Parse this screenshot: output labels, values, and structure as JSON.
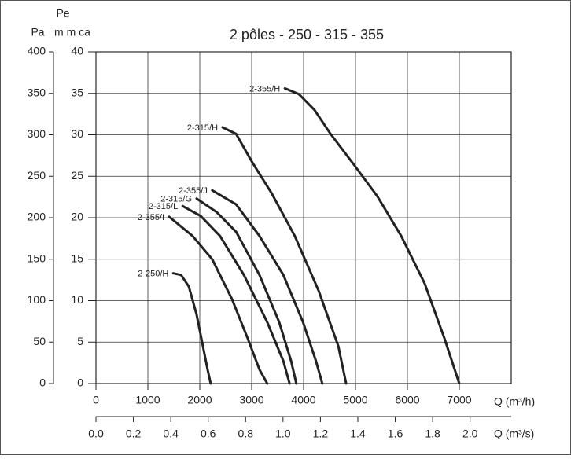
{
  "chart_data": {
    "type": "line",
    "title": "2 pôles - 250 - 315 - 355",
    "y_label": "Pa",
    "y2_label_top": "Pe",
    "y2_label": "m m ca",
    "x_label": "Q (m³/h)",
    "x2_label": "Q (m³/s)",
    "xlim": [
      0,
      8000
    ],
    "xticks": [
      0,
      1000,
      2000,
      3000,
      4000,
      5000,
      6000,
      7000
    ],
    "x2lim": [
      0,
      2.22
    ],
    "x2ticks": [
      {
        "value": 0,
        "label": "0.0"
      },
      {
        "value": 0.2,
        "label": "0.2"
      },
      {
        "value": 0.4,
        "label": "0.4"
      },
      {
        "value": 0.6,
        "label": "0.6"
      },
      {
        "value": 0.8,
        "label": "0.8"
      },
      {
        "value": 1,
        "label": "1.0"
      },
      {
        "value": 1.2,
        "label": "1.2"
      },
      {
        "value": 1.4,
        "label": "1.4"
      },
      {
        "value": 1.6,
        "label": "1.6"
      },
      {
        "value": 1.8,
        "label": "1.8"
      },
      {
        "value": 2,
        "label": "2.0"
      }
    ],
    "ylim": [
      0,
      400
    ],
    "yticks": [
      0,
      50,
      100,
      150,
      200,
      250,
      300,
      350,
      400
    ],
    "y2lim": [
      0,
      40
    ],
    "y2ticks": [
      0,
      5,
      10,
      15,
      20,
      25,
      30,
      35,
      40
    ],
    "grid": true,
    "series": [
      {
        "name": "2-250/H",
        "color": "#222222",
        "x": [
          1490,
          1640,
          1790,
          1940,
          2060,
          2150,
          2210
        ],
        "values": [
          133,
          131,
          117,
          83,
          45,
          17,
          0
        ]
      },
      {
        "name": "2-355/I",
        "color": "#222222",
        "x": [
          1410,
          1860,
          2240,
          2620,
          2920,
          3150,
          3300
        ],
        "values": [
          201,
          178,
          150,
          102,
          55,
          17,
          0
        ]
      },
      {
        "name": "2-315/L",
        "color": "#222222",
        "x": [
          1670,
          2020,
          2390,
          2850,
          3300,
          3610,
          3730
        ],
        "values": [
          214,
          202,
          178,
          131,
          74,
          27,
          0
        ]
      },
      {
        "name": "2-315/G",
        "color": "#222222",
        "x": [
          1940,
          2320,
          2700,
          3150,
          3530,
          3760,
          3860
        ],
        "values": [
          223,
          207,
          183,
          131,
          74,
          27,
          0
        ]
      },
      {
        "name": "2-355/J",
        "color": "#222222",
        "x": [
          2240,
          2700,
          3150,
          3610,
          3990,
          4240,
          4360
        ],
        "values": [
          233,
          216,
          178,
          131,
          74,
          27,
          0
        ]
      },
      {
        "name": "2-315/H",
        "color": "#222222",
        "x": [
          2440,
          2700,
          3000,
          3380,
          3830,
          4290,
          4670,
          4820
        ],
        "values": [
          309,
          301,
          268,
          230,
          178,
          112,
          45,
          0
        ]
      },
      {
        "name": "2-355/H",
        "color": "#222222",
        "x": [
          3640,
          3910,
          4210,
          4520,
          4970,
          5420,
          5880,
          6330,
          6710,
          7000
        ],
        "values": [
          356,
          349,
          330,
          301,
          264,
          226,
          178,
          121,
          55,
          0
        ]
      }
    ]
  }
}
